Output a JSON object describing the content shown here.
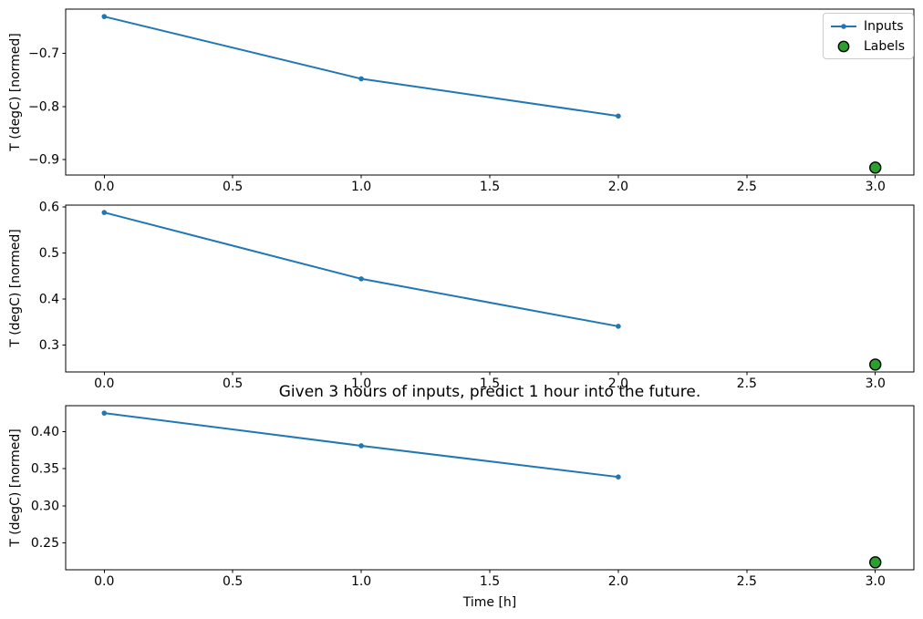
{
  "figure": {
    "background": "#ffffff",
    "axes_edge_color": "#000000",
    "legend_border_color": "#cccccc",
    "inputs_color": "#1f77b4",
    "labels_fill_color": "#2ca02c",
    "labels_edge_color": "#000000"
  },
  "chart_data": [
    {
      "type": "line",
      "title": "",
      "xlabel": "",
      "ylabel": "T (degC) [normed]",
      "series": [
        {
          "name": "Inputs",
          "type": "line",
          "marker": "dot",
          "color": "#1f77b4",
          "x": [
            0,
            1,
            2
          ],
          "y": [
            -0.631,
            -0.748,
            -0.818
          ]
        },
        {
          "name": "Labels",
          "type": "scatter",
          "color": "#2ca02c",
          "edgecolor": "#000000",
          "x": [
            3
          ],
          "y": [
            -0.915
          ]
        }
      ],
      "xlim": [
        -0.15,
        3.15
      ],
      "ylim": [
        -0.929,
        -0.617
      ],
      "xticks": [
        0,
        0.5,
        1,
        1.5,
        2,
        2.5,
        3
      ],
      "xticklabels": [
        "0.0",
        "0.5",
        "1.0",
        "1.5",
        "2.0",
        "2.5",
        "3.0"
      ],
      "yticks": [
        -0.7,
        -0.8,
        -0.9
      ],
      "yticklabels": [
        "−0.7",
        "−0.8",
        "−0.9"
      ],
      "grid": false,
      "legend": {
        "visible": true,
        "position": "upper right",
        "entries": [
          "Inputs",
          "Labels"
        ]
      }
    },
    {
      "type": "line",
      "title": "",
      "xlabel": "",
      "ylabel": "T (degC) [normed]",
      "series": [
        {
          "name": "Inputs",
          "type": "line",
          "marker": "dot",
          "color": "#1f77b4",
          "x": [
            0,
            1,
            2
          ],
          "y": [
            0.588,
            0.444,
            0.341
          ]
        },
        {
          "name": "Labels",
          "type": "scatter",
          "color": "#2ca02c",
          "edgecolor": "#000000",
          "x": [
            3
          ],
          "y": [
            0.258
          ]
        }
      ],
      "xlim": [
        -0.15,
        3.15
      ],
      "ylim": [
        0.242,
        0.604
      ],
      "xticks": [
        0,
        0.5,
        1,
        1.5,
        2,
        2.5,
        3
      ],
      "xticklabels": [
        "0.0",
        "0.5",
        "1.0",
        "1.5",
        "2.0",
        "2.5",
        "3.0"
      ],
      "yticks": [
        0.6,
        0.5,
        0.4,
        0.3
      ],
      "yticklabels": [
        "0.6",
        "0.5",
        "0.4",
        "0.3"
      ],
      "grid": false,
      "legend": {
        "visible": false
      }
    },
    {
      "type": "line",
      "title": "Given 3 hours of inputs, predict 1 hour into the future.",
      "xlabel": "Time [h]",
      "ylabel": "T (degC) [normed]",
      "series": [
        {
          "name": "Inputs",
          "type": "line",
          "marker": "dot",
          "color": "#1f77b4",
          "x": [
            0,
            1,
            2
          ],
          "y": [
            0.425,
            0.381,
            0.339
          ]
        },
        {
          "name": "Labels",
          "type": "scatter",
          "color": "#2ca02c",
          "edgecolor": "#000000",
          "x": [
            3
          ],
          "y": [
            0.224
          ]
        }
      ],
      "xlim": [
        -0.15,
        3.15
      ],
      "ylim": [
        0.214,
        0.435
      ],
      "xticks": [
        0,
        0.5,
        1,
        1.5,
        2,
        2.5,
        3
      ],
      "xticklabels": [
        "0.0",
        "0.5",
        "1.0",
        "1.5",
        "2.0",
        "2.5",
        "3.0"
      ],
      "yticks": [
        0.4,
        0.35,
        0.3,
        0.25
      ],
      "yticklabels": [
        "0.40",
        "0.35",
        "0.30",
        "0.25"
      ],
      "grid": false,
      "legend": {
        "visible": false
      }
    }
  ]
}
